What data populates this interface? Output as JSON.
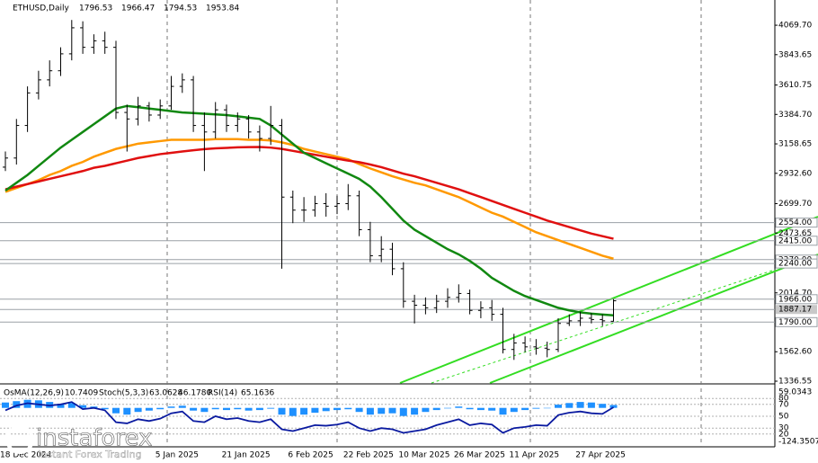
{
  "chart_data": {
    "type": "candlestick",
    "title": "ETHUSD,Daily",
    "categories": [
      "18 Dec 2024",
      null,
      null,
      null,
      null,
      null,
      null,
      null,
      null,
      null,
      null,
      null,
      null,
      null,
      null,
      null,
      "5 Jan 2025",
      null,
      null,
      null,
      null,
      null,
      "21 Jan 2025",
      null,
      null,
      null,
      null,
      null,
      "6 Feb 2025",
      null,
      null,
      null,
      null,
      "22 Feb 2025",
      null,
      null,
      null,
      null,
      "10 Mar 2025",
      null,
      null,
      null,
      null,
      "26 Mar 2025",
      null,
      null,
      null,
      null,
      "11 Apr 2025",
      null,
      null,
      null,
      null,
      null,
      "27 Apr 2025",
      null
    ],
    "open": [
      2980,
      3050,
      3300,
      3550,
      3650,
      3720,
      3850,
      4050,
      3900,
      3950,
      3900,
      3400,
      3350,
      3450,
      3380,
      3450,
      3600,
      3650,
      3300,
      3250,
      3420,
      3300,
      3350,
      3250,
      3200,
      3300,
      2750,
      2650,
      2650,
      2700,
      2680,
      2700,
      2760,
      2500,
      2300,
      2350,
      2200,
      1950,
      1920,
      1900,
      1950,
      1980,
      2010,
      1880,
      1900,
      1850,
      1580,
      1630,
      1600,
      1590,
      1580,
      1780,
      1800,
      1820,
      1810,
      1796.53
    ],
    "high": [
      3100,
      3350,
      3600,
      3720,
      3800,
      3900,
      4110,
      4100,
      4000,
      4020,
      3950,
      3460,
      3520,
      3480,
      3500,
      3680,
      3700,
      3680,
      3400,
      3480,
      3460,
      3400,
      3380,
      3300,
      3450,
      3350,
      2800,
      2750,
      2760,
      2780,
      2760,
      2850,
      2800,
      2560,
      2450,
      2400,
      2250,
      2000,
      1980,
      2000,
      2050,
      2080,
      2040,
      1950,
      1960,
      1900,
      1700,
      1680,
      1660,
      1640,
      1820,
      1850,
      1870,
      1860,
      1850,
      1966.47
    ],
    "low": [
      2950,
      3000,
      3250,
      3500,
      3600,
      3680,
      3800,
      3850,
      3850,
      3850,
      3350,
      3100,
      3300,
      3330,
      3350,
      3420,
      3550,
      3250,
      2950,
      3200,
      3250,
      3250,
      3200,
      3100,
      3150,
      2200,
      2550,
      2560,
      2600,
      2600,
      2620,
      2650,
      2450,
      2250,
      2250,
      2150,
      1900,
      1780,
      1850,
      1860,
      1900,
      1940,
      1850,
      1820,
      1800,
      1550,
      1500,
      1560,
      1540,
      1520,
      1560,
      1760,
      1760,
      1780,
      1760,
      1794.53
    ],
    "close": [
      3050,
      3300,
      3550,
      3650,
      3720,
      3850,
      4050,
      3900,
      3950,
      3900,
      3400,
      3350,
      3450,
      3380,
      3450,
      3600,
      3650,
      3300,
      3250,
      3420,
      3300,
      3350,
      3250,
      3200,
      3300,
      2750,
      2650,
      2650,
      2700,
      2680,
      2700,
      2760,
      2500,
      2300,
      2350,
      2200,
      1950,
      1920,
      1900,
      1950,
      1980,
      2010,
      1880,
      1900,
      1850,
      1580,
      1630,
      1600,
      1590,
      1580,
      1780,
      1800,
      1820,
      1810,
      1800,
      1953.84
    ],
    "color": "#000000",
    "moving_averages": [
      {
        "color": "#ff9900",
        "values": [
          2790,
          2820,
          2850,
          2880,
          2920,
          2950,
          2990,
          3020,
          3060,
          3090,
          3120,
          3140,
          3160,
          3170,
          3180,
          3190,
          3190,
          3190,
          3190,
          3195,
          3195,
          3195,
          3190,
          3190,
          3185,
          3170,
          3150,
          3120,
          3100,
          3080,
          3060,
          3040,
          3004,
          2970,
          2940,
          2910,
          2885,
          2860,
          2840,
          2810,
          2780,
          2750,
          2710,
          2670,
          2630,
          2600,
          2560,
          2520,
          2480,
          2450,
          2420,
          2390,
          2360,
          2330,
          2300,
          2277
        ]
      },
      {
        "color": "#e01010",
        "values": [
          2810,
          2830,
          2850,
          2870,
          2890,
          2910,
          2930,
          2950,
          2975,
          2990,
          3010,
          3030,
          3050,
          3065,
          3080,
          3090,
          3100,
          3110,
          3118,
          3124,
          3128,
          3132,
          3134,
          3135,
          3130,
          3120,
          3105,
          3090,
          3075,
          3060,
          3045,
          3030,
          3018,
          3000,
          2980,
          2955,
          2930,
          2910,
          2885,
          2860,
          2835,
          2810,
          2780,
          2750,
          2720,
          2690,
          2660,
          2630,
          2600,
          2570,
          2545,
          2520,
          2495,
          2470,
          2450,
          2430
        ]
      },
      {
        "color": "#118811",
        "values": [
          2800,
          2860,
          2920,
          2990,
          3060,
          3130,
          3190,
          3250,
          3310,
          3370,
          3430,
          3450,
          3440,
          3430,
          3420,
          3410,
          3400,
          3395,
          3390,
          3385,
          3380,
          3370,
          3360,
          3350,
          3300,
          3230,
          3160,
          3090,
          3050,
          3010,
          2970,
          2930,
          2890,
          2830,
          2750,
          2660,
          2570,
          2500,
          2450,
          2400,
          2350,
          2310,
          2260,
          2200,
          2130,
          2080,
          2030,
          1990,
          1960,
          1930,
          1900,
          1880,
          1865,
          1855,
          1848,
          1842
        ]
      }
    ],
    "ylim": [
      1322.7,
      4263.4
    ],
    "yticks": [
      {
        "value": 4069.7,
        "label": "4069.70"
      },
      3843.65,
      3610.75,
      {
        "value": 3384.7,
        "label": "3384.70"
      },
      3158.65,
      {
        "value": 2932.6,
        "label": "2932.60"
      },
      {
        "value": 2699.7,
        "label": "2699.70"
      },
      2473.65,
      {
        "value": 2014.7,
        "label": "2014.70"
      },
      {
        "value": 1562.6,
        "label": "1562.60"
      },
      1336.55
    ],
    "levels": [
      {
        "value": 2554,
        "label": "2554.00"
      },
      {
        "value": 2415,
        "label": "2415.00"
      },
      {
        "value": 2270,
        "label": "2270.00"
      },
      {
        "value": 2240,
        "label": "2240.00"
      },
      {
        "value": 1966,
        "label": "1966.00"
      },
      {
        "value": 1790,
        "label": "1790.00"
      }
    ],
    "current_price": 1887.17,
    "indicator": {
      "osma_name": "OsMA(12,26,9)",
      "stoch_name": "Stoch(5,3,3)",
      "stoch_values": [
        63.0628,
        {
          "value": 46.178,
          "label": "46.1780"
        }
      ],
      "rsi_name": "RSI(14)",
      "osma_color": "#1e90ff",
      "osma": [
        20,
        25,
        30,
        28,
        22,
        15,
        18,
        10,
        5,
        -5,
        -20,
        -25,
        -15,
        -10,
        -5,
        5,
        8,
        -10,
        -15,
        -5,
        -8,
        -5,
        -10,
        -8,
        -3,
        -25,
        -30,
        -25,
        -18,
        -12,
        -8,
        -5,
        -15,
        -25,
        -22,
        -20,
        -30,
        -25,
        -15,
        -8,
        -2,
        5,
        -5,
        -8,
        -10,
        -25,
        -15,
        -8,
        -3,
        0,
        12,
        18,
        22,
        20,
        15,
        10.7409
      ],
      "osma_lim": [
        -124.3507,
        59.0343
      ],
      "rsi_color": "#0a1aa0",
      "rsi": [
        60,
        68,
        72,
        70,
        68,
        70,
        74,
        62,
        64,
        60,
        40,
        38,
        45,
        42,
        46,
        55,
        58,
        42,
        40,
        50,
        45,
        47,
        42,
        40,
        45,
        28,
        25,
        30,
        35,
        34,
        36,
        40,
        30,
        25,
        30,
        28,
        22,
        25,
        28,
        35,
        40,
        45,
        35,
        38,
        36,
        22,
        30,
        32,
        35,
        34,
        52,
        56,
        58,
        55,
        54,
        65.1636
      ],
      "rsi_lim": [
        0,
        100
      ],
      "rsi_ticks": [
        80,
        70,
        50,
        30,
        20
      ]
    },
    "watermark": {
      "name": "instaforex",
      "tagline": "Instant Forex Trading"
    }
  }
}
